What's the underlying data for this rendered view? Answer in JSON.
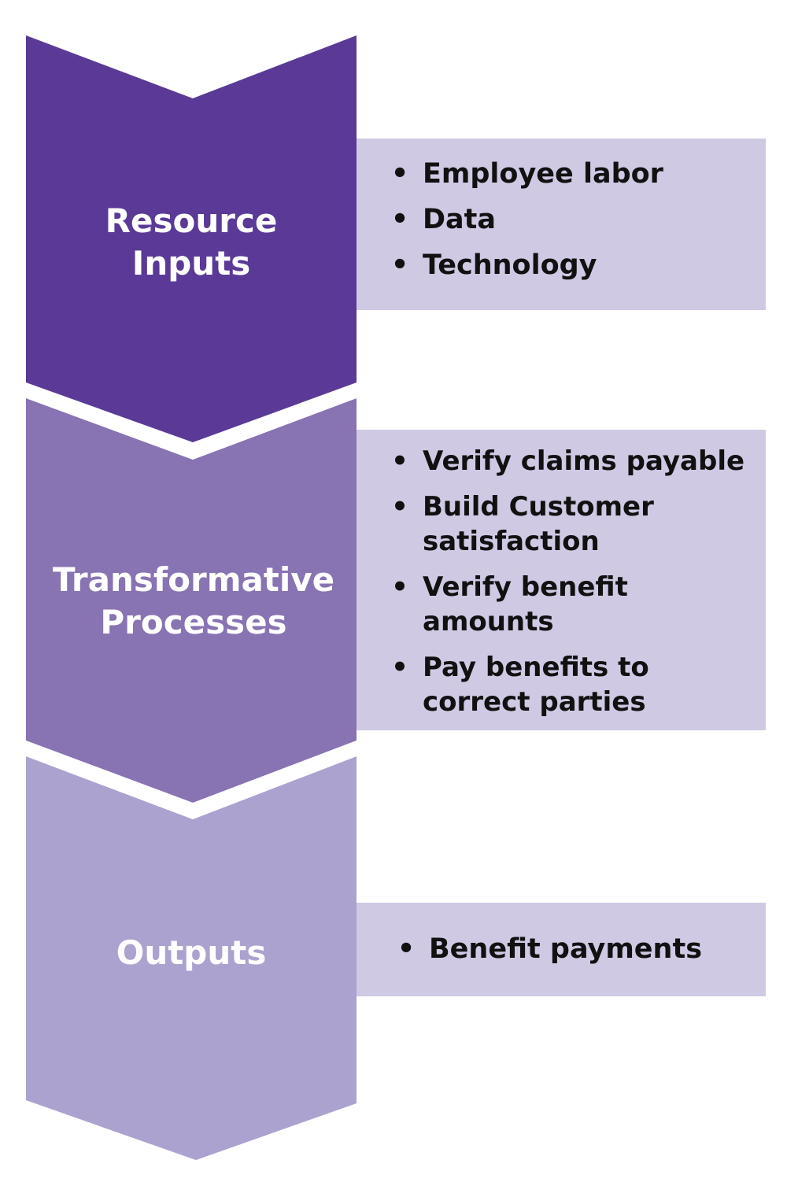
{
  "colors": {
    "stage1_fill": "#5a3a96",
    "stage2_fill": "#8873b3",
    "stage3_fill": "#aca2cf",
    "panel_fill": "#d0c9e4",
    "label_text": "#ffffff",
    "item_text": "#111111"
  },
  "stages": [
    {
      "label_lines": [
        "Resource",
        "Inputs"
      ],
      "items": [
        "Employee labor",
        "Data",
        "Technology"
      ]
    },
    {
      "label_lines": [
        "Transformative",
        "Processes"
      ],
      "items": [
        "Verify claims payable",
        "Build Customer satisfaction",
        "Verify benefit amounts",
        "Pay benefits to correct parties"
      ]
    },
    {
      "label_lines": [
        "Outputs"
      ],
      "items": [
        "Benefit payments"
      ]
    }
  ],
  "bullet_glyph": "•"
}
